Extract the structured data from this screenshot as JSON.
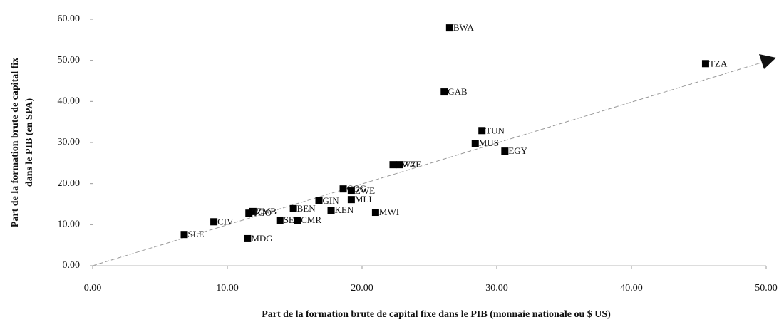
{
  "chart_data": {
    "type": "scatter",
    "x_label": "Part de la formation brute de capital fixe dans le PIB (monnaie nationale ou $ US)",
    "y_label": [
      "Part de la formation brute de capital fix",
      "dans le PIB (en SPA)"
    ],
    "labels": [
      "BWA",
      "TZA",
      "GAB",
      "TUN",
      "MUS",
      "EGY",
      "SWZ",
      "ZAF",
      "COG",
      "ZWE",
      "MLI",
      "GIN",
      "BEN",
      "KEN",
      "MWI",
      "ZMB",
      "TGO",
      "CIV",
      "SEN",
      "CMR",
      "SLE",
      "MDG"
    ],
    "x": [
      26.5,
      45.5,
      26.1,
      28.9,
      28.4,
      30.6,
      22.3,
      22.8,
      18.6,
      19.2,
      19.2,
      16.8,
      14.9,
      17.7,
      21.0,
      11.9,
      11.6,
      9.0,
      13.9,
      15.2,
      6.8,
      11.5
    ],
    "values": [
      57.9,
      49.2,
      42.3,
      32.9,
      29.8,
      27.9,
      24.6,
      24.6,
      18.7,
      18.2,
      16.1,
      15.8,
      13.9,
      13.5,
      13.0,
      13.2,
      12.8,
      10.7,
      11.1,
      11.1,
      7.6,
      6.6
    ],
    "color": "#000000",
    "xlim": [
      0,
      50
    ],
    "xticks": [
      {
        "value": 0,
        "label": "0.00"
      },
      {
        "value": 10,
        "label": "10.00"
      },
      {
        "value": 20,
        "label": "20.00"
      },
      {
        "value": 30,
        "label": "30.00"
      },
      {
        "value": 40,
        "label": "40.00"
      },
      {
        "value": 50,
        "label": "50.00"
      }
    ],
    "ylim": [
      0,
      60
    ],
    "yticks": [
      {
        "value": 0,
        "label": "0.00"
      },
      {
        "value": 10,
        "label": "10.00"
      },
      {
        "value": 20,
        "label": "20.00"
      },
      {
        "value": 30,
        "label": "30.00"
      },
      {
        "value": 40,
        "label": "40.00"
      },
      {
        "value": 50,
        "label": "50.00"
      },
      {
        "value": 60,
        "label": "60.00"
      }
    ]
  }
}
